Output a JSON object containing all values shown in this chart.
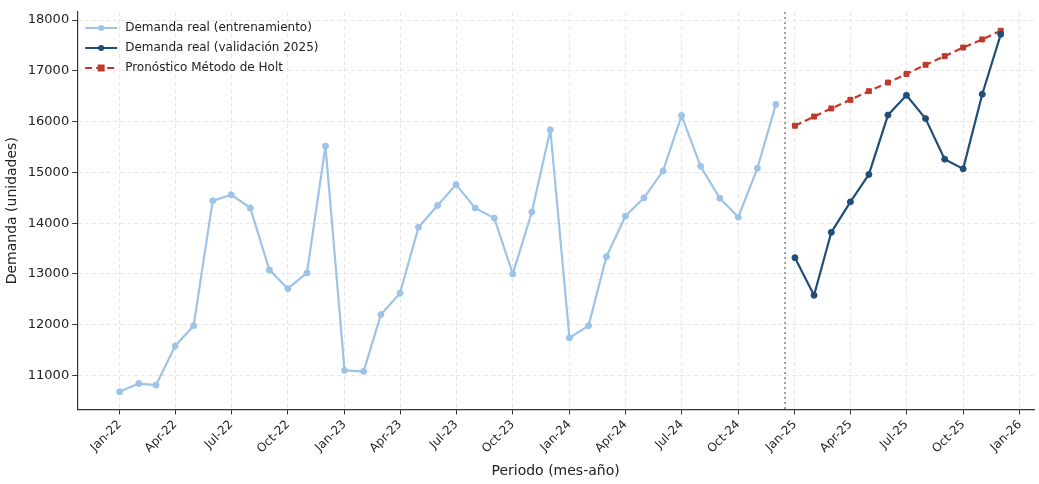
{
  "chart_data": {
    "type": "line",
    "xlabel": "Periodo (mes-año)",
    "ylabel": "Demanda (unidades)",
    "xlim": [
      "2021-10-24",
      "2026-01-24"
    ],
    "xticks": [
      {
        "value": "2022-01",
        "label": "Jan-22"
      },
      {
        "value": "2022-04",
        "label": "Apr-22"
      },
      {
        "value": "2022-07",
        "label": "Jul-22"
      },
      {
        "value": "2022-10",
        "label": "Oct-22"
      },
      {
        "value": "2023-01",
        "label": "Jan-23"
      },
      {
        "value": "2023-04",
        "label": "Apr-23"
      },
      {
        "value": "2023-07",
        "label": "Jul-23"
      },
      {
        "value": "2023-10",
        "label": "Oct-23"
      },
      {
        "value": "2024-01",
        "label": "Jan-24"
      },
      {
        "value": "2024-04",
        "label": "Apr-24"
      },
      {
        "value": "2024-07",
        "label": "Jul-24"
      },
      {
        "value": "2024-10",
        "label": "Oct-24"
      },
      {
        "value": "2025-01",
        "label": "Jan-25"
      },
      {
        "value": "2025-04",
        "label": "Apr-25"
      },
      {
        "value": "2025-07",
        "label": "Jul-25"
      },
      {
        "value": "2025-10",
        "label": "Oct-25"
      },
      {
        "value": "2026-01",
        "label": "Jan-26"
      }
    ],
    "ylim": [
      10330,
      18160
    ],
    "yticks": [
      11000,
      12000,
      13000,
      14000,
      15000,
      16000,
      17000,
      18000
    ],
    "grid": true,
    "legend": "top left",
    "ref_lines": [
      {
        "axis": "x",
        "value": "2024-12-16",
        "color": "#808080",
        "line_style": "dotted"
      }
    ],
    "series": [
      {
        "name": "Demanda real (entrenamiento)",
        "color": "#9dc3e6",
        "marker": "circle",
        "line_style": "solid",
        "x": [
          "2022-01",
          "2022-02",
          "2022-03",
          "2022-04",
          "2022-05",
          "2022-06",
          "2022-07",
          "2022-08",
          "2022-09",
          "2022-10",
          "2022-11",
          "2022-12",
          "2023-01",
          "2023-02",
          "2023-03",
          "2023-04",
          "2023-05",
          "2023-06",
          "2023-07",
          "2023-08",
          "2023-09",
          "2023-10",
          "2023-11",
          "2023-12",
          "2024-01",
          "2024-02",
          "2024-03",
          "2024-04",
          "2024-05",
          "2024-06",
          "2024-07",
          "2024-08",
          "2024-09",
          "2024-10",
          "2024-11",
          "2024-12"
        ],
        "values": [
          10680,
          10840,
          10810,
          11580,
          11980,
          14440,
          14560,
          14300,
          13080,
          12710,
          13020,
          15520,
          11100,
          11080,
          12200,
          12620,
          13920,
          14350,
          14760,
          14300,
          14100,
          13000,
          14220,
          15840,
          11740,
          11980,
          13340,
          14140,
          14500,
          15030,
          16120,
          15120,
          14490,
          14120,
          15080,
          16340
        ]
      },
      {
        "name": "Demanda real (validación 2025)",
        "color": "#1f4e79",
        "marker": "circle",
        "line_style": "solid",
        "x": [
          "2025-01",
          "2025-02",
          "2025-03",
          "2025-04",
          "2025-05",
          "2025-06",
          "2025-07",
          "2025-08",
          "2025-09",
          "2025-10",
          "2025-11",
          "2025-12"
        ],
        "values": [
          13320,
          12580,
          13820,
          14420,
          14960,
          16130,
          16520,
          16060,
          15260,
          15070,
          16540,
          17720
        ]
      },
      {
        "name": "Pronóstico Método de Holt",
        "color": "#c0392b",
        "marker": "square",
        "line_style": "dashed",
        "x": [
          "2025-01",
          "2025-02",
          "2025-03",
          "2025-04",
          "2025-05",
          "2025-06",
          "2025-07",
          "2025-08",
          "2025-09",
          "2025-10",
          "2025-11",
          "2025-12"
        ],
        "values": [
          15920,
          16100,
          16260,
          16430,
          16600,
          16770,
          16940,
          17120,
          17290,
          17460,
          17620,
          17790
        ]
      }
    ]
  }
}
